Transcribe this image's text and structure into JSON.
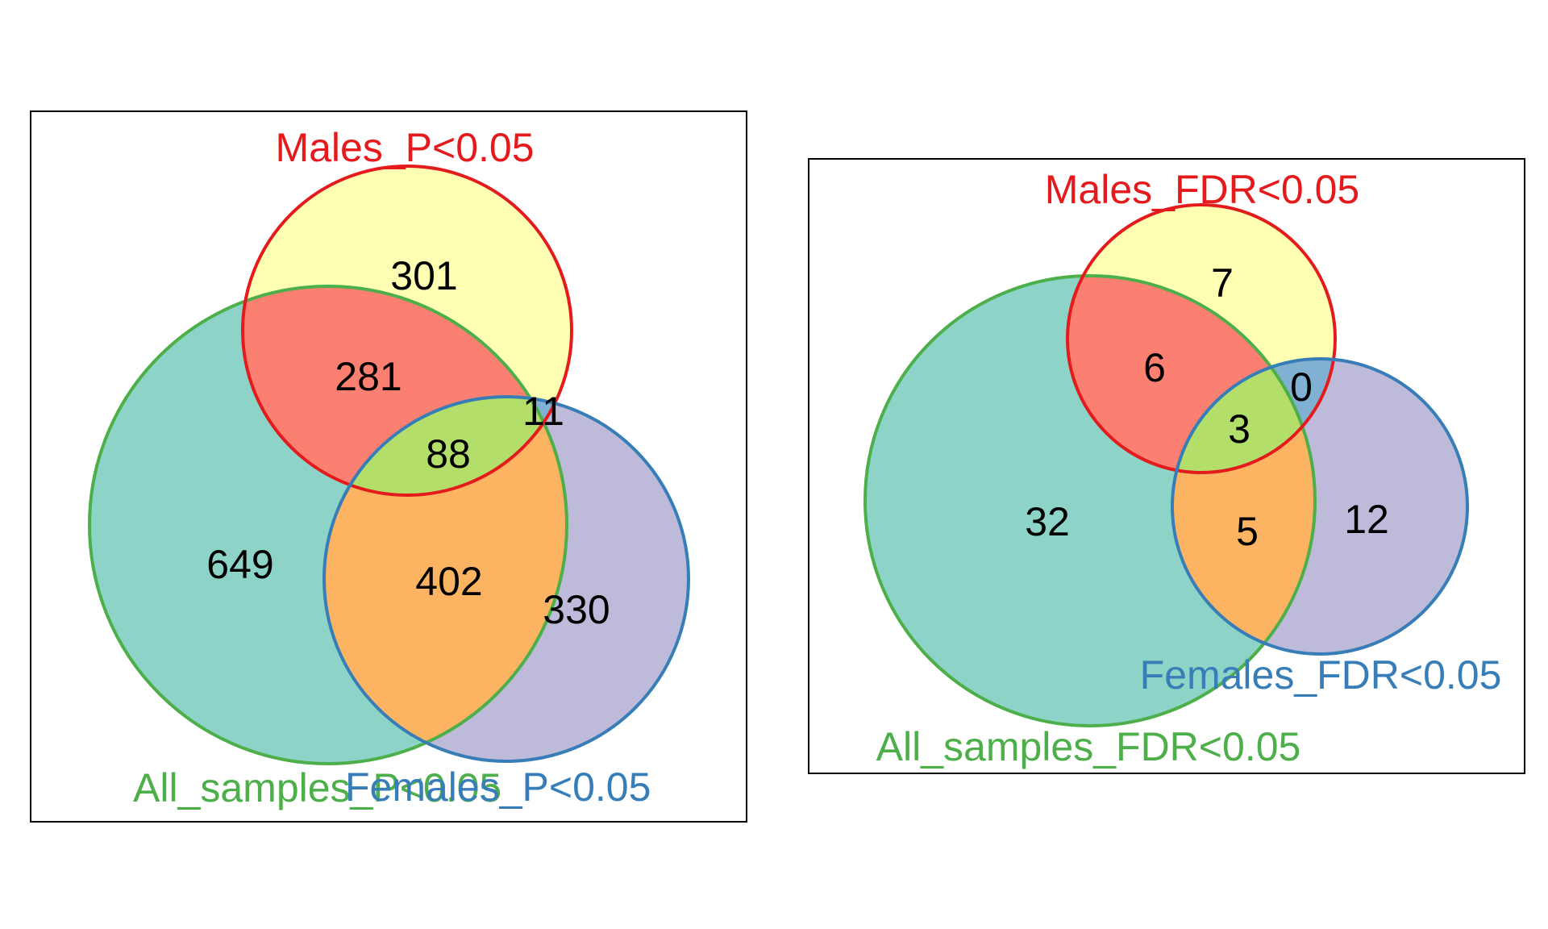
{
  "diagrams": [
    {
      "sets": {
        "males": {
          "label": "Males_P<0.05",
          "stroke": "#e41a1c",
          "text_color": "#e41a1c"
        },
        "all": {
          "label": "All_samples_P<0.05",
          "stroke": "#4daf4a",
          "text_color": "#4daf4a"
        },
        "females": {
          "label": "Females_P<0.05",
          "stroke": "#377eb8",
          "text_color": "#377eb8"
        }
      },
      "regions": {
        "males_only": {
          "count": "301",
          "fill": "#ffffb3"
        },
        "males_all": {
          "count": "281",
          "fill": "#fb8072"
        },
        "males_females": {
          "count": "11",
          "fill": "#80b1d3"
        },
        "all_three": {
          "count": "88",
          "fill": "#b3de69"
        },
        "all_only": {
          "count": "649",
          "fill": "#8dd3c7"
        },
        "all_females": {
          "count": "402",
          "fill": "#fdb462"
        },
        "females_only": {
          "count": "330",
          "fill": "#bebada"
        }
      }
    },
    {
      "sets": {
        "males": {
          "label": "Males_FDR<0.05",
          "stroke": "#e41a1c",
          "text_color": "#e41a1c"
        },
        "all": {
          "label": "All_samples_FDR<0.05",
          "stroke": "#4daf4a",
          "text_color": "#4daf4a"
        },
        "females": {
          "label": "Females_FDR<0.05",
          "stroke": "#377eb8",
          "text_color": "#377eb8"
        }
      },
      "regions": {
        "males_only": {
          "count": "7",
          "fill": "#ffffb3"
        },
        "males_all": {
          "count": "6",
          "fill": "#fb8072"
        },
        "males_females": {
          "count": "0",
          "fill": "#80b1d3"
        },
        "all_three": {
          "count": "3",
          "fill": "#b3de69"
        },
        "all_only": {
          "count": "32",
          "fill": "#8dd3c7"
        },
        "all_females": {
          "count": "5",
          "fill": "#fdb462"
        },
        "females_only": {
          "count": "12",
          "fill": "#bebada"
        }
      }
    }
  ]
}
